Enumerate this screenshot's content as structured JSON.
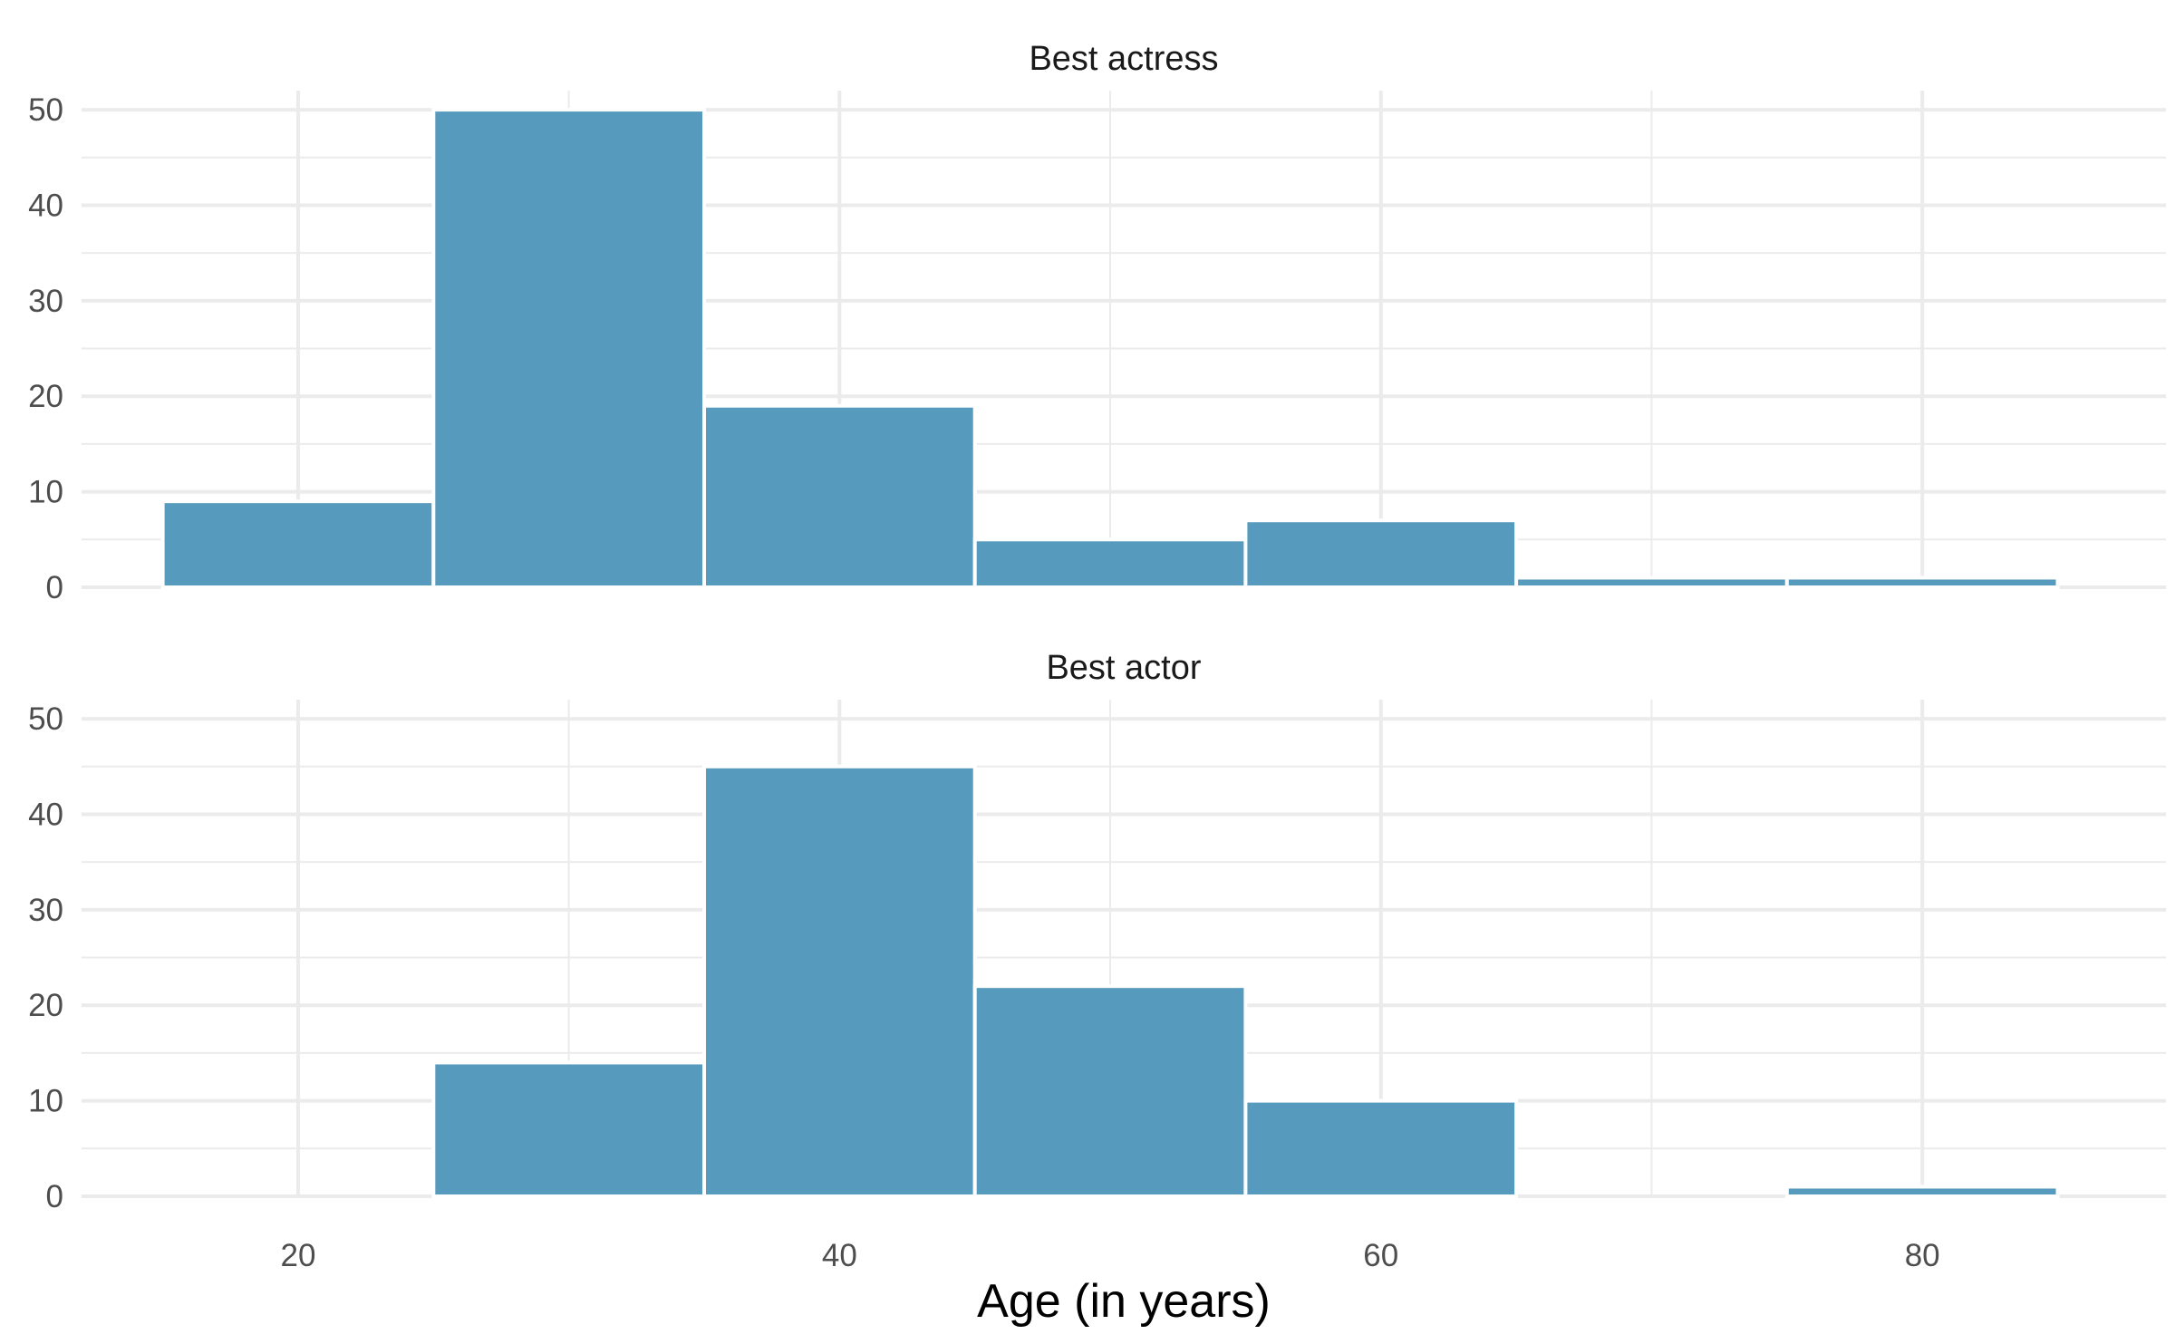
{
  "chart_data": {
    "type": "bar",
    "xlabel": "Age (in years)",
    "ylabel": "",
    "bar_color": "#569bbd",
    "grid_color": "#ebebeb",
    "grid": true,
    "xlim": [
      12,
      89
    ],
    "ylim": [
      0,
      52
    ],
    "x_ticks": [
      20,
      40,
      60,
      80
    ],
    "x_minor_ticks": [
      30,
      50,
      70
    ],
    "y_ticks": [
      0,
      10,
      20,
      30,
      40,
      50
    ],
    "y_minor_ticks": [
      5,
      15,
      25,
      35,
      45
    ],
    "bin_edges": [
      15,
      25,
      35,
      45,
      55,
      65,
      75,
      85
    ],
    "panels": [
      {
        "title": "Best actress",
        "values": [
          9,
          50,
          19,
          5,
          7,
          1,
          1
        ]
      },
      {
        "title": "Best actor",
        "values": [
          0,
          14,
          45,
          22,
          10,
          0,
          1
        ]
      }
    ]
  }
}
